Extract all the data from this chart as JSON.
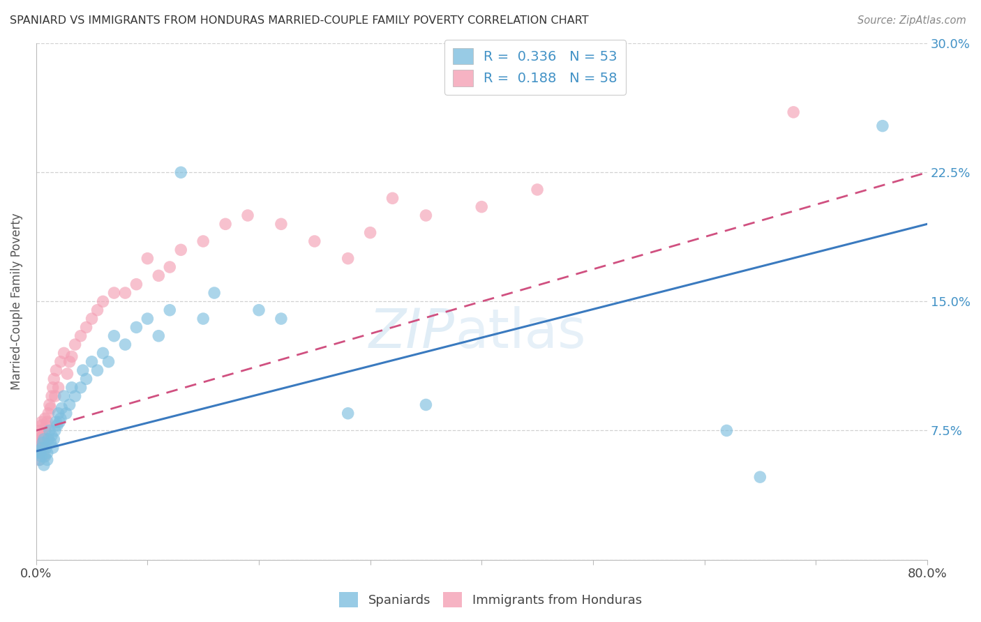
{
  "title": "SPANIARD VS IMMIGRANTS FROM HONDURAS MARRIED-COUPLE FAMILY POVERTY CORRELATION CHART",
  "source": "Source: ZipAtlas.com",
  "ylabel": "Married-Couple Family Poverty",
  "xlim": [
    0,
    0.8
  ],
  "ylim": [
    0,
    0.3
  ],
  "xticks": [
    0.0,
    0.1,
    0.2,
    0.3,
    0.4,
    0.5,
    0.6,
    0.7,
    0.8
  ],
  "xticklabels": [
    "0.0%",
    "",
    "",
    "",
    "",
    "",
    "",
    "",
    "80.0%"
  ],
  "yticks": [
    0.0,
    0.075,
    0.15,
    0.225,
    0.3
  ],
  "yticklabels": [
    "",
    "7.5%",
    "15.0%",
    "22.5%",
    "30.0%"
  ],
  "blue_color": "#7fbfdf",
  "pink_color": "#f4a0b5",
  "blue_line_color": "#3a7abf",
  "pink_line_color": "#d05080",
  "watermark_color": "#c8dff0",
  "spaniards_x": [
    0.002,
    0.003,
    0.004,
    0.005,
    0.005,
    0.006,
    0.007,
    0.007,
    0.008,
    0.009,
    0.01,
    0.01,
    0.011,
    0.012,
    0.013,
    0.014,
    0.015,
    0.016,
    0.017,
    0.018,
    0.019,
    0.02,
    0.021,
    0.022,
    0.023,
    0.025,
    0.027,
    0.03,
    0.032,
    0.035,
    0.04,
    0.042,
    0.045,
    0.05,
    0.055,
    0.06,
    0.065,
    0.07,
    0.08,
    0.09,
    0.1,
    0.11,
    0.12,
    0.13,
    0.15,
    0.16,
    0.2,
    0.22,
    0.28,
    0.35,
    0.62,
    0.65,
    0.76
  ],
  "spaniards_y": [
    0.063,
    0.058,
    0.062,
    0.06,
    0.065,
    0.068,
    0.055,
    0.07,
    0.06,
    0.065,
    0.058,
    0.062,
    0.07,
    0.075,
    0.068,
    0.072,
    0.065,
    0.07,
    0.075,
    0.08,
    0.078,
    0.085,
    0.08,
    0.082,
    0.088,
    0.095,
    0.085,
    0.09,
    0.1,
    0.095,
    0.1,
    0.11,
    0.105,
    0.115,
    0.11,
    0.12,
    0.115,
    0.13,
    0.125,
    0.135,
    0.14,
    0.13,
    0.145,
    0.225,
    0.14,
    0.155,
    0.145,
    0.14,
    0.085,
    0.09,
    0.075,
    0.048,
    0.252
  ],
  "honduras_x": [
    0.001,
    0.002,
    0.002,
    0.003,
    0.003,
    0.004,
    0.004,
    0.005,
    0.005,
    0.005,
    0.006,
    0.006,
    0.007,
    0.007,
    0.008,
    0.008,
    0.009,
    0.01,
    0.01,
    0.011,
    0.012,
    0.013,
    0.014,
    0.015,
    0.016,
    0.017,
    0.018,
    0.02,
    0.022,
    0.025,
    0.028,
    0.03,
    0.032,
    0.035,
    0.04,
    0.045,
    0.05,
    0.055,
    0.06,
    0.07,
    0.08,
    0.09,
    0.1,
    0.11,
    0.12,
    0.13,
    0.15,
    0.17,
    0.19,
    0.22,
    0.25,
    0.28,
    0.3,
    0.32,
    0.35,
    0.4,
    0.45,
    0.68
  ],
  "honduras_y": [
    0.068,
    0.062,
    0.072,
    0.058,
    0.065,
    0.068,
    0.075,
    0.07,
    0.078,
    0.08,
    0.065,
    0.072,
    0.06,
    0.068,
    0.075,
    0.082,
    0.078,
    0.07,
    0.08,
    0.085,
    0.09,
    0.088,
    0.095,
    0.1,
    0.105,
    0.095,
    0.11,
    0.1,
    0.115,
    0.12,
    0.108,
    0.115,
    0.118,
    0.125,
    0.13,
    0.135,
    0.14,
    0.145,
    0.15,
    0.155,
    0.155,
    0.16,
    0.175,
    0.165,
    0.17,
    0.18,
    0.185,
    0.195,
    0.2,
    0.195,
    0.185,
    0.175,
    0.19,
    0.21,
    0.2,
    0.205,
    0.215,
    0.26
  ],
  "blue_line_start_y": 0.063,
  "blue_line_end_y": 0.195,
  "pink_line_start_y": 0.075,
  "pink_line_end_y": 0.225
}
